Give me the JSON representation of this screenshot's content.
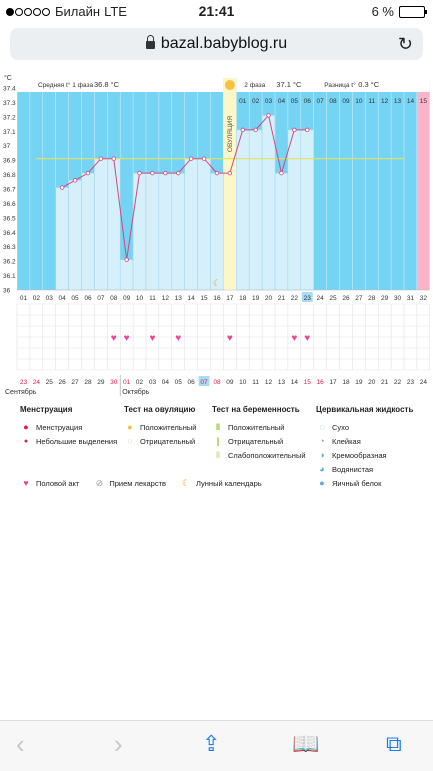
{
  "status": {
    "carrier": "Билайн",
    "network": "LTE",
    "time": "21:41",
    "battery": "6 %"
  },
  "browser": {
    "url": "bazal.babyblog.ru"
  },
  "chart_data": {
    "type": "line",
    "unit": "°C",
    "ymin": 36,
    "ymax": 37.4,
    "yticks": [
      "37.4",
      "37.3",
      "37.2",
      "37.1",
      "37",
      "36.9",
      "36.8",
      "36.7",
      "36.6",
      "36.5",
      "36.4",
      "36.3",
      "36.2",
      "36.1",
      "36"
    ],
    "cycle_days": [
      "01",
      "02",
      "03",
      "04",
      "05",
      "06",
      "07",
      "08",
      "09",
      "10",
      "11",
      "12",
      "13",
      "14",
      "15",
      "16",
      "17",
      "18",
      "19",
      "20",
      "21",
      "22",
      "23",
      "24",
      "25",
      "26",
      "27",
      "28",
      "29",
      "30",
      "31",
      "32"
    ],
    "today_day": "23",
    "highlight_day_index": 22,
    "ovulation_day_index": 16,
    "phase1_label": "Средняя t° 1 фаза",
    "phase1_value": "36.8 °C",
    "phase2_label": "2 фаза",
    "phase2_value": "37.1 °C",
    "diff_label": "Разница t°",
    "diff_value": "0.3 °C",
    "ovulation_label": "ОВУЛЯЦИЯ",
    "coverline": 36.91,
    "phase2_day_labels": [
      "01",
      "02",
      "03",
      "04",
      "05",
      "06",
      "07",
      "08",
      "09",
      "10",
      "11",
      "12",
      "13",
      "14",
      "15"
    ],
    "temps": [
      null,
      null,
      null,
      36.71,
      36.76,
      36.81,
      36.91,
      36.91,
      36.21,
      36.81,
      36.81,
      36.81,
      36.81,
      36.91,
      36.91,
      36.81,
      36.81,
      37.11,
      37.11,
      37.21,
      36.81,
      37.11,
      37.11,
      null,
      null,
      null,
      null,
      null,
      null,
      null,
      null,
      null
    ],
    "intercourse_days": [
      8,
      9,
      11,
      13,
      17,
      22,
      23
    ],
    "calendar_dates": [
      "23",
      "24",
      "25",
      "26",
      "27",
      "28",
      "29",
      "30",
      "01",
      "02",
      "03",
      "04",
      "05",
      "06",
      "07",
      "08",
      "09",
      "10",
      "11",
      "12",
      "13",
      "14",
      "15",
      "16",
      "17",
      "18",
      "19",
      "20",
      "21",
      "22",
      "23",
      "24"
    ],
    "calendar_red": [
      0,
      1,
      7,
      8,
      14,
      15,
      22,
      23
    ],
    "calendar_today_index": 14,
    "month1": "Сентябрь",
    "month2": "Октябрь"
  },
  "legend": {
    "menstruation": {
      "title": "Менструация",
      "items": [
        "Менструация",
        "Небольшие выделения"
      ]
    },
    "ovulation_test": {
      "title": "Тест на овуляцию",
      "items": [
        "Положительный",
        "Отрицательный"
      ]
    },
    "pregnancy_test": {
      "title": "Тест на беременность",
      "items": [
        "Положительный",
        "Отрицательный",
        "Слабоположительный"
      ]
    },
    "cervical": {
      "title": "Цервикальная жидкость",
      "items": [
        "Сухо",
        "Клейкая",
        "Кремообразная",
        "Водянистая",
        "Яичный белок"
      ]
    },
    "extra": [
      "Половой акт",
      "Прием лекарств",
      "Лунный календарь"
    ],
    "colors": {
      "menstruation": "#e11d48",
      "intercourse": "#ec4899",
      "ovulation": "#f5c242",
      "pregnancy": "#9acd32",
      "cervical": "#5aa9e6",
      "sky": "#75d3f3",
      "bar": "#d5f0fb"
    }
  }
}
